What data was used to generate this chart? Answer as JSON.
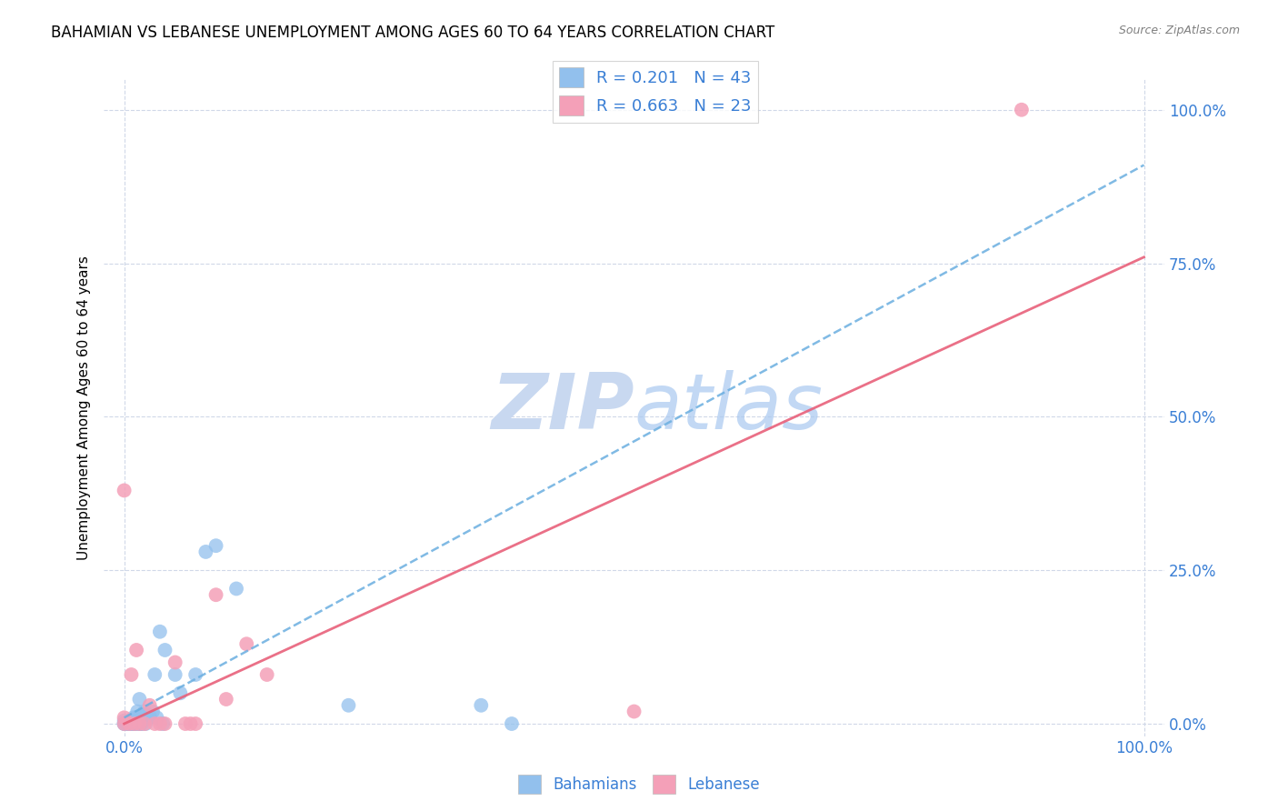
{
  "title": "BAHAMIAN VS LEBANESE UNEMPLOYMENT AMONG AGES 60 TO 64 YEARS CORRELATION CHART",
  "source": "Source: ZipAtlas.com",
  "ylabel": "Unemployment Among Ages 60 to 64 years",
  "x_tick_labels": [
    "0.0%",
    "100.0%"
  ],
  "y_tick_labels": [
    "0.0%",
    "25.0%",
    "50.0%",
    "75.0%",
    "100.0%"
  ],
  "x_tick_positions": [
    0.0,
    1.0
  ],
  "y_tick_positions": [
    0.0,
    0.25,
    0.5,
    0.75,
    1.0
  ],
  "xlim": [
    -0.02,
    1.02
  ],
  "ylim": [
    -0.02,
    1.05
  ],
  "bahamian_R": 0.201,
  "bahamian_N": 43,
  "lebanese_R": 0.663,
  "lebanese_N": 23,
  "blue_color": "#92c0ed",
  "pink_color": "#f4a0b8",
  "blue_line_color": "#6aaee0",
  "pink_line_color": "#e8607a",
  "legend_text_color": "#3a7fd5",
  "watermark_color": "#c8d8f0",
  "bahamian_x": [
    0.0,
    0.0,
    0.0,
    0.002,
    0.004,
    0.005,
    0.006,
    0.007,
    0.008,
    0.009,
    0.01,
    0.01,
    0.01,
    0.011,
    0.012,
    0.013,
    0.014,
    0.015,
    0.015,
    0.016,
    0.017,
    0.018,
    0.019,
    0.02,
    0.021,
    0.022,
    0.025,
    0.025,
    0.028,
    0.03,
    0.032,
    0.035,
    0.038,
    0.04,
    0.05,
    0.055,
    0.07,
    0.08,
    0.09,
    0.11,
    0.22,
    0.35,
    0.38
  ],
  "bahamian_y": [
    0.0,
    0.0,
    0.005,
    0.0,
    0.0,
    0.0,
    0.0,
    0.005,
    0.0,
    0.01,
    0.0,
    0.0,
    0.0,
    0.005,
    0.01,
    0.02,
    0.0,
    0.0,
    0.04,
    0.0,
    0.0,
    0.015,
    0.01,
    0.02,
    0.0,
    0.015,
    0.01,
    0.013,
    0.02,
    0.08,
    0.01,
    0.15,
    0.0,
    0.12,
    0.08,
    0.05,
    0.08,
    0.28,
    0.29,
    0.22,
    0.03,
    0.03,
    0.0
  ],
  "lebanese_x": [
    0.0,
    0.0,
    0.0,
    0.005,
    0.007,
    0.01,
    0.012,
    0.015,
    0.02,
    0.025,
    0.03,
    0.035,
    0.04,
    0.05,
    0.06,
    0.065,
    0.07,
    0.09,
    0.1,
    0.12,
    0.14,
    0.5,
    0.88
  ],
  "lebanese_y": [
    0.0,
    0.01,
    0.38,
    0.0,
    0.08,
    0.0,
    0.12,
    0.0,
    0.0,
    0.03,
    0.0,
    0.0,
    0.0,
    0.1,
    0.0,
    0.0,
    0.0,
    0.21,
    0.04,
    0.13,
    0.08,
    0.02,
    1.0
  ],
  "blue_line_x0": 0.0,
  "blue_line_y0": 0.01,
  "blue_line_x1": 1.0,
  "blue_line_y1": 0.91,
  "pink_line_x0": 0.0,
  "pink_line_y0": 0.0,
  "pink_line_x1": 1.0,
  "pink_line_y1": 0.76,
  "background_color": "#ffffff",
  "grid_color": "#d0d8e8",
  "title_fontsize": 12,
  "axis_label_fontsize": 11,
  "tick_color": "#3a7fd5"
}
